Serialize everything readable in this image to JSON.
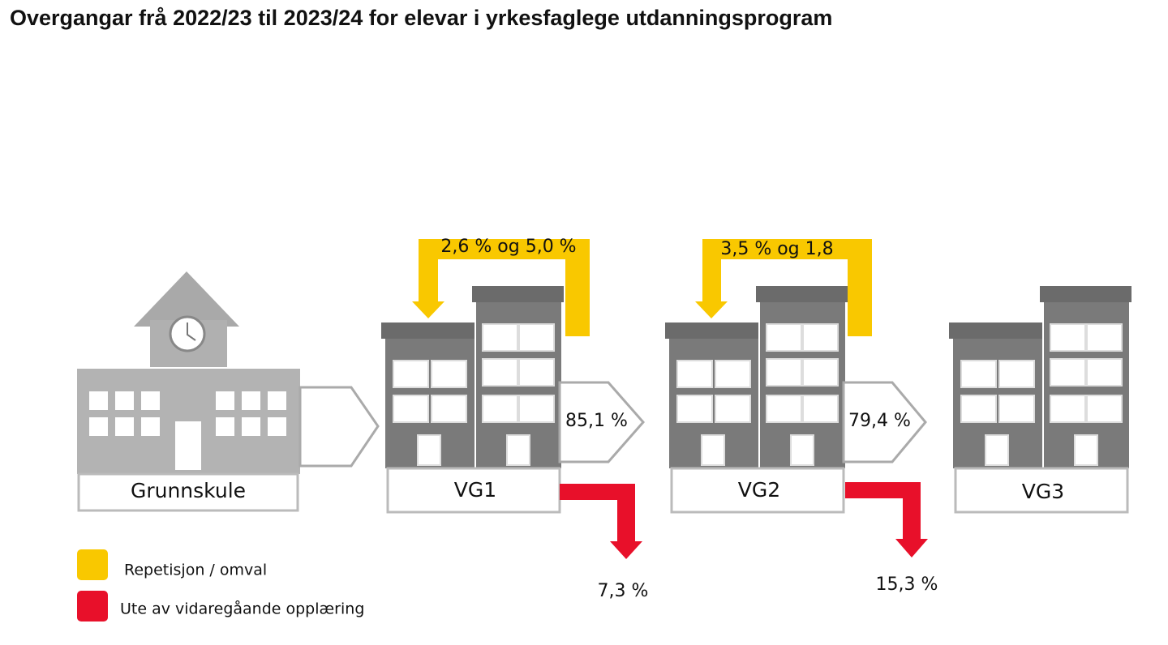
{
  "title": "Overgangar frå 2022/23 til 2023/24 for elevar i yrkesfaglege utdanningsprogram",
  "stages": [
    {
      "label": "Grunnskule"
    },
    {
      "label": "VG1"
    },
    {
      "label": "VG2"
    },
    {
      "label": "VG3"
    }
  ],
  "transitions": [
    {
      "label": "85,1 %"
    },
    {
      "label": "79,4 %"
    }
  ],
  "repeats": [
    {
      "label": "2,6 % og 5,0 %"
    },
    {
      "label": "3,5 % og 1,8"
    }
  ],
  "dropouts": [
    {
      "label": "7,3 %"
    },
    {
      "label": "15,3 %"
    }
  ],
  "legend": [
    {
      "label": "Repetisjon / omval",
      "color": "#f9c800"
    },
    {
      "label": "Ute av vidaregåande opplæring",
      "color": "#e8102a"
    }
  ]
}
